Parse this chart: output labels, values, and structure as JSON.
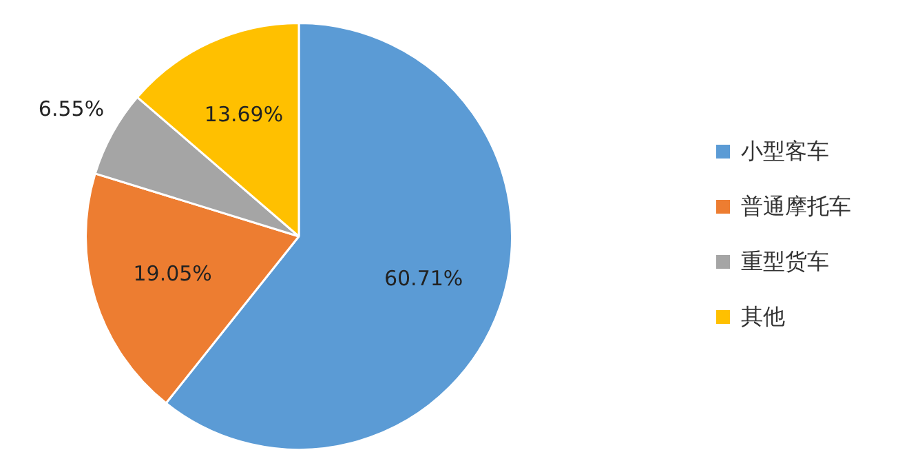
{
  "chart_data": {
    "type": "pie",
    "categories": [
      "小型客车",
      "普通摩托车",
      "重型货车",
      "其他"
    ],
    "values": [
      60.71,
      19.05,
      6.55,
      13.69
    ],
    "colors": [
      "#5b9bd5",
      "#ed7d31",
      "#a5a5a5",
      "#ffc000"
    ],
    "value_labels": [
      "60.71%",
      "19.05%",
      "6.55%",
      "13.69%"
    ],
    "legend": "right"
  }
}
